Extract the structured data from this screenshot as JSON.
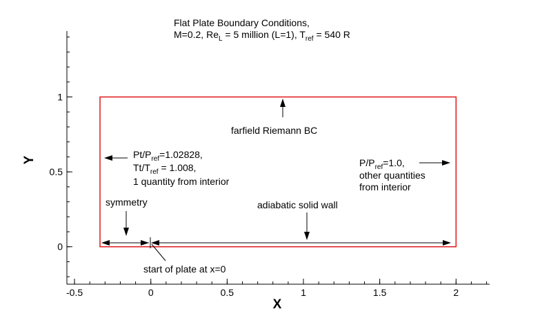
{
  "title": {
    "line1": "Flat Plate Boundary Conditions,",
    "line2_a": "M=0.2, Re",
    "line2_sub": "L",
    "line2_b": " = 5 million (L=1), T",
    "line2_sub2": "ref",
    "line2_c": " = 540 R"
  },
  "axes": {
    "xlabel": "X",
    "ylabel": "Y",
    "xlim": [
      -0.55,
      2.22
    ],
    "ylim": [
      -0.25,
      1.44
    ],
    "x_ticks": [
      {
        "v": -0.5,
        "label": "-0.5"
      },
      {
        "v": 0,
        "label": "0"
      },
      {
        "v": 0.5,
        "label": "0.5"
      },
      {
        "v": 1,
        "label": "1"
      },
      {
        "v": 1.5,
        "label": "1.5"
      },
      {
        "v": 2,
        "label": "2"
      }
    ],
    "y_ticks": [
      {
        "v": 0,
        "label": "0"
      },
      {
        "v": 0.5,
        "label": "0.5"
      },
      {
        "v": 1,
        "label": "1"
      }
    ],
    "x_minor_step": 0.1,
    "y_minor_step": 0.1
  },
  "domain_box": {
    "x0": -0.333,
    "x1": 2.0,
    "y0": 0.0,
    "y1": 1.0,
    "color": "#e0161b"
  },
  "labels": {
    "farfield": "farfield Riemann BC",
    "inflow_l1_a": "Pt/P",
    "inflow_l1_sub": "ref",
    "inflow_l1_b": "=1.02828,",
    "inflow_l2_a": "Tt/T",
    "inflow_l2_sub": "ref",
    "inflow_l2_b": " = 1.008,",
    "inflow_l3": "1 quantity from interior",
    "outflow_l1_a": "P/P",
    "outflow_l1_sub": "ref",
    "outflow_l1_b": "=1.0,",
    "outflow_l2": "other quantities",
    "outflow_l3": "from interior",
    "symmetry": "symmetry",
    "wall": "adiabatic solid wall",
    "plate_start": "start of plate at x=0"
  }
}
